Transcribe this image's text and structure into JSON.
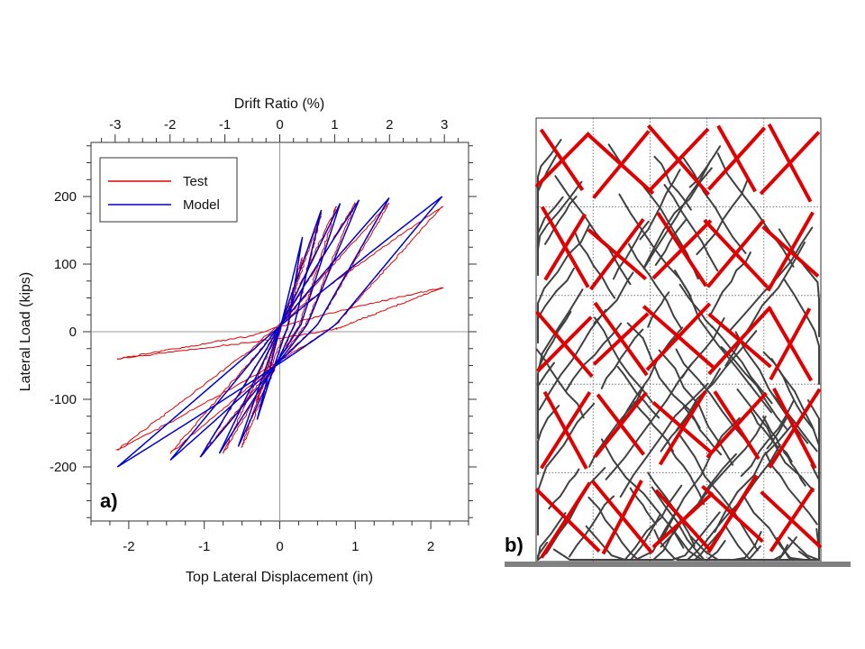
{
  "chart_data": [
    {
      "type": "line",
      "panel_label": "a)",
      "xlabel": "Top Lateral Displacement (in)",
      "x2label": "Drift Ratio (%)",
      "ylabel": "Lateral Load (kips)",
      "xlim": [
        -2.5,
        2.5
      ],
      "ylim": [
        -280,
        280
      ],
      "x2lim": [
        -3.44,
        3.44
      ],
      "xticks": [
        -2,
        -1,
        0,
        1,
        2
      ],
      "x2ticks": [
        -3,
        -2,
        -1,
        0,
        1,
        2,
        3
      ],
      "yticks": [
        -200,
        -100,
        0,
        100,
        200
      ],
      "legend_position": "top-left",
      "series": [
        {
          "name": "Test",
          "color": "#e00000",
          "loops": [
            {
              "peak_pos": [
                0.3,
                110
              ],
              "peak_neg": [
                -0.3,
                -105
              ],
              "pinch": 0.55
            },
            {
              "peak_pos": [
                0.55,
                175
              ],
              "peak_neg": [
                -0.5,
                -170
              ],
              "pinch": 0.5
            },
            {
              "peak_pos": [
                0.75,
                185
              ],
              "peak_neg": [
                -0.75,
                -180
              ],
              "pinch": 0.45
            },
            {
              "peak_pos": [
                1.0,
                190
              ],
              "peak_neg": [
                -1.05,
                -185
              ],
              "pinch": 0.45
            },
            {
              "peak_pos": [
                1.45,
                190
              ],
              "peak_neg": [
                -1.45,
                -180
              ],
              "pinch": 0.4
            },
            {
              "peak_pos": [
                2.15,
                185
              ],
              "peak_neg": [
                -2.15,
                -175
              ],
              "pinch": 0.35
            },
            {
              "peak_pos": [
                2.15,
                65
              ],
              "peak_neg": [
                -2.15,
                -40
              ],
              "pinch": 0.3
            }
          ]
        },
        {
          "name": "Model",
          "color": "#0000d0",
          "loops": [
            {
              "peak_pos": [
                0.3,
                140
              ],
              "peak_neg": [
                -0.3,
                -130
              ],
              "pinch": 0.5
            },
            {
              "peak_pos": [
                0.55,
                180
              ],
              "peak_neg": [
                -0.55,
                -170
              ],
              "pinch": 0.45
            },
            {
              "peak_pos": [
                0.8,
                190
              ],
              "peak_neg": [
                -0.8,
                -180
              ],
              "pinch": 0.45
            },
            {
              "peak_pos": [
                1.05,
                195
              ],
              "peak_neg": [
                -1.05,
                -185
              ],
              "pinch": 0.4
            },
            {
              "peak_pos": [
                1.45,
                198
              ],
              "peak_neg": [
                -1.45,
                -190
              ],
              "pinch": 0.4
            },
            {
              "peak_pos": [
                2.15,
                200
              ],
              "peak_neg": [
                -2.15,
                -200
              ],
              "pinch": 0.4
            }
          ]
        }
      ]
    },
    {
      "type": "diagram",
      "panel_label": "b)",
      "grid_columns": 5,
      "grid_rows": 5,
      "red_mark_color": "#e00000",
      "crack_line_color": "#404040",
      "base_color": "#808080"
    }
  ]
}
